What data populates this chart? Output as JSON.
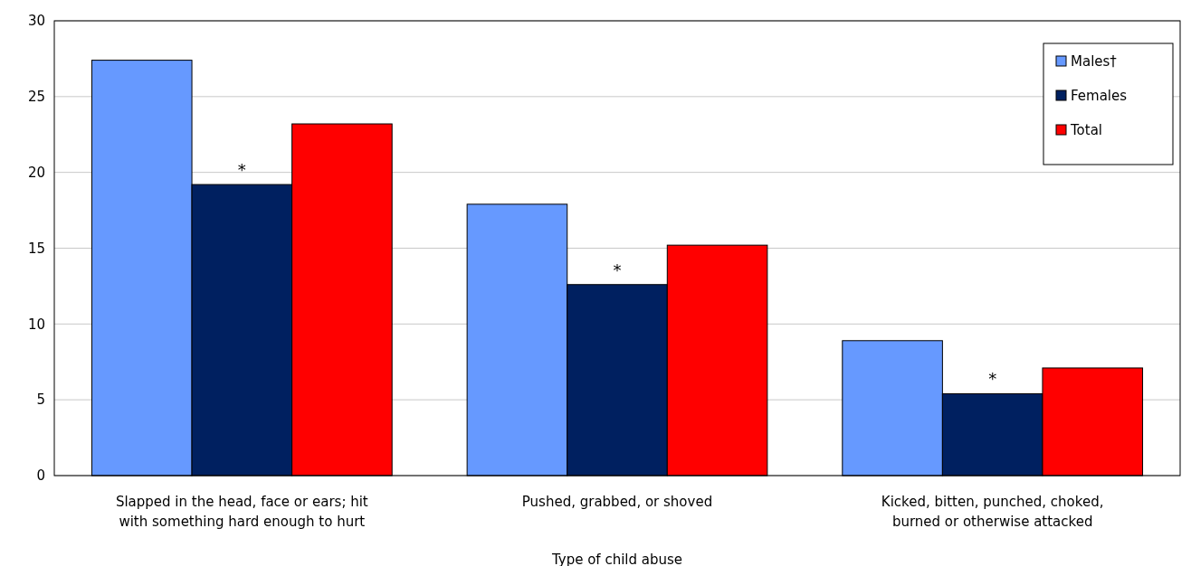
{
  "chart_data": {
    "type": "bar",
    "xlabel": "Type of child abuse",
    "categories": [
      "Slapped in the head, face or ears; hit with something hard enough to hurt",
      "Pushed, grabbed, or shoved",
      "Kicked, bitten, punched, choked, burned or otherwise attacked"
    ],
    "series": [
      {
        "name": "Males†",
        "color": "#6699ff",
        "values": [
          27.4,
          17.9,
          8.9
        ]
      },
      {
        "name": "Females",
        "color": "#002060",
        "values": [
          19.2,
          12.6,
          5.4
        ]
      },
      {
        "name": "Total",
        "color": "#ff0000",
        "values": [
          23.2,
          15.2,
          7.1
        ]
      }
    ],
    "ylim": [
      0,
      30
    ],
    "yticks": [
      0,
      5,
      10,
      15,
      20,
      25,
      30
    ],
    "grid": "y",
    "legend": "top right",
    "annotations": [
      {
        "text": "*",
        "x": "Slapped in the head, face or ears; hit with something hard enough to hurt",
        "y": 19.2
      },
      {
        "text": "*",
        "x": "Pushed, grabbed, or shoved",
        "y": 12.6
      },
      {
        "text": "*",
        "x": "Kicked, bitten, punched, choked, burned or otherwise attacked",
        "y": 5.4
      }
    ]
  }
}
